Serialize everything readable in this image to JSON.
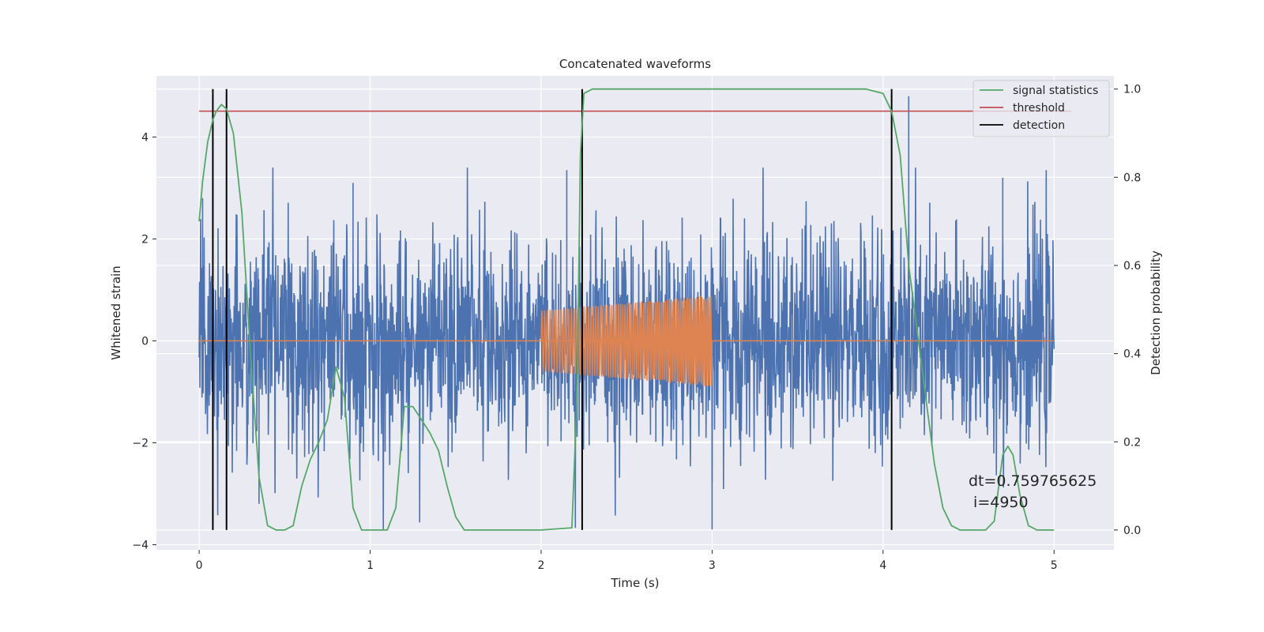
{
  "chart_data": {
    "type": "line",
    "title": "Concatenated waveforms",
    "xlabel": "Time (s)",
    "ylabel": "Whitened strain",
    "y2label": "Detection probability",
    "xlim": [
      -0.25,
      5.35
    ],
    "ylim": [
      -4.1,
      5.2
    ],
    "y2lim": [
      -0.045,
      1.03
    ],
    "xticks": [
      0,
      1,
      2,
      3,
      4,
      5
    ],
    "yticks": [
      -4,
      -2,
      0,
      2,
      4
    ],
    "y2ticks": [
      0.0,
      0.2,
      0.4,
      0.6,
      0.8,
      1.0
    ],
    "xtick_labels": [
      "0",
      "1",
      "2",
      "3",
      "4",
      "5"
    ],
    "ytick_labels": [
      "−4",
      "−2",
      "0",
      "2",
      "4"
    ],
    "y2tick_labels": [
      "0.0",
      "0.2",
      "0.4",
      "0.6",
      "0.8",
      "1.0"
    ],
    "grid": true,
    "legend_position": "top-right",
    "series": [
      {
        "name": "whitened strain (noise)",
        "axis": "left",
        "color": "#4c72b0",
        "kind": "noise",
        "x_range": [
          0,
          5
        ],
        "typical_amplitude": 1.0,
        "peak_max": 4.8,
        "peak_min": -3.7
      },
      {
        "name": "injected waveform",
        "axis": "left",
        "color": "#dd8452",
        "kind": "chirp",
        "x_range": [
          2,
          3
        ],
        "amplitude_start": 0.6,
        "amplitude_end": 0.9
      },
      {
        "name": "signal statistics",
        "axis": "right",
        "color": "#55a868",
        "x": [
          0.0,
          0.02,
          0.05,
          0.08,
          0.1,
          0.13,
          0.16,
          0.2,
          0.25,
          0.3,
          0.35,
          0.4,
          0.45,
          0.5,
          0.55,
          0.6,
          0.65,
          0.7,
          0.75,
          0.8,
          0.85,
          0.9,
          0.95,
          1.0,
          1.1,
          1.15,
          1.2,
          1.25,
          1.3,
          1.35,
          1.4,
          1.45,
          1.5,
          1.55,
          1.6,
          2.0,
          2.18,
          2.21,
          2.23,
          2.25,
          2.3,
          2.5,
          3.0,
          3.5,
          3.9,
          4.0,
          4.05,
          4.1,
          4.15,
          4.2,
          4.25,
          4.3,
          4.35,
          4.4,
          4.45,
          4.5,
          4.6,
          4.65,
          4.7,
          4.73,
          4.76,
          4.8,
          4.85,
          4.9,
          5.0
        ],
        "values": [
          0.7,
          0.79,
          0.88,
          0.93,
          0.95,
          0.965,
          0.955,
          0.9,
          0.72,
          0.4,
          0.12,
          0.01,
          0.0,
          0.0,
          0.01,
          0.1,
          0.16,
          0.2,
          0.25,
          0.37,
          0.3,
          0.05,
          0.0,
          0.0,
          0.0,
          0.05,
          0.28,
          0.28,
          0.25,
          0.22,
          0.18,
          0.1,
          0.03,
          0.0,
          0.0,
          0.0,
          0.005,
          0.3,
          0.85,
          0.99,
          1.0,
          1.0,
          1.0,
          1.0,
          1.0,
          0.99,
          0.95,
          0.85,
          0.6,
          0.45,
          0.3,
          0.15,
          0.05,
          0.01,
          0.0,
          0.0,
          0.0,
          0.02,
          0.17,
          0.19,
          0.17,
          0.08,
          0.01,
          0.0,
          0.0
        ]
      },
      {
        "name": "threshold",
        "axis": "right",
        "color": "#c44e52",
        "x": [
          0,
          5.1
        ],
        "values": [
          0.95,
          0.95
        ]
      },
      {
        "name": "detection",
        "axis": "right",
        "color": "#000000",
        "kind": "vlines",
        "x": [
          0.08,
          0.16,
          2.24,
          4.05
        ],
        "y_range": [
          0.0,
          1.0
        ]
      }
    ],
    "legend": [
      "signal statistics",
      "threshold",
      "detection"
    ],
    "annotation": {
      "line1": "dt=0.759765625",
      "line2": " i=4950"
    }
  }
}
